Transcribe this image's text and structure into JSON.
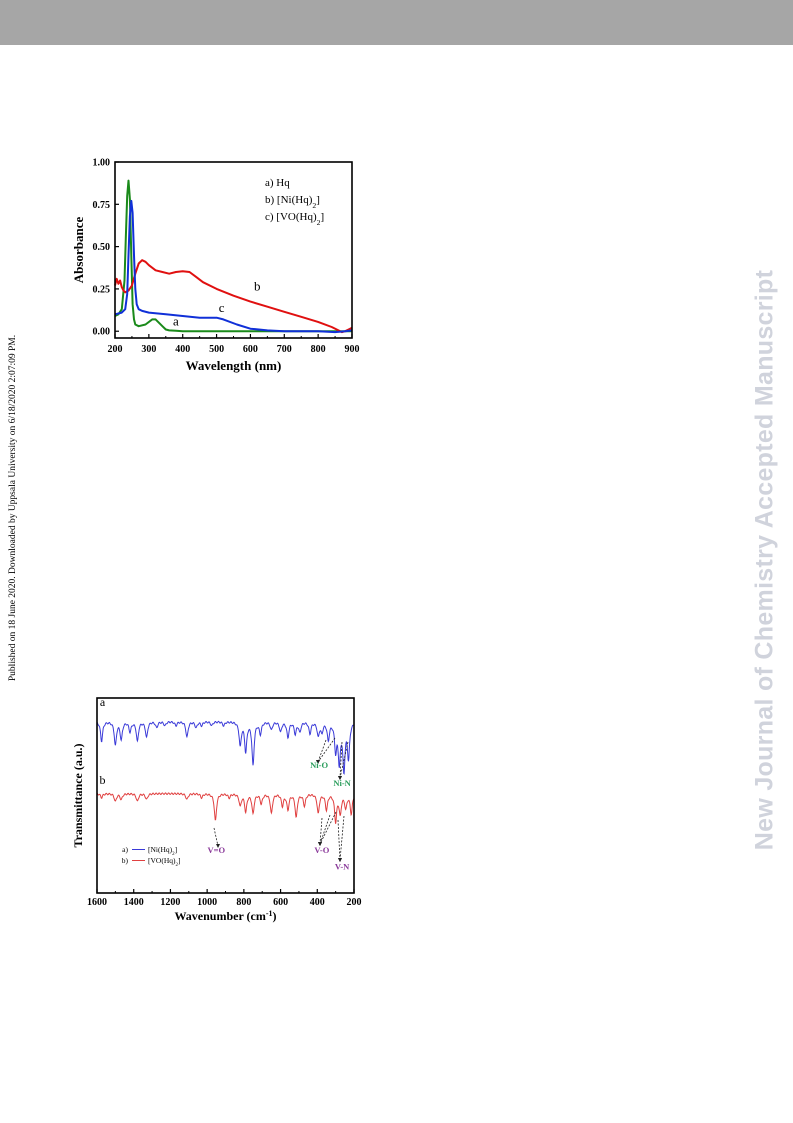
{
  "side_text": {
    "published": "Published on 18 June 2020. Downloaded by Uppsala University on 6/18/2020 2:07:09 PM.",
    "journal": "New Journal of Chemistry Accepted Manuscript"
  },
  "chart_data": [
    {
      "type": "line",
      "xlabel": "Wavelength (nm)",
      "ylabel": "Absorbance",
      "xlim": [
        200,
        900
      ],
      "ylim": [
        -0.04,
        1.0
      ],
      "xticks": [
        "200",
        "300",
        "400",
        "500",
        "600",
        "700",
        "800",
        "900"
      ],
      "yticks": [
        "0.00",
        "0.25",
        "0.50",
        "0.75",
        "1.00"
      ],
      "legend": [
        {
          "tag": "a)",
          "text": "Hq"
        },
        {
          "tag": "b)",
          "text": "[Ni(Hq)",
          "sub": "2",
          "tail": "]"
        },
        {
          "tag": "c)",
          "text": "[VO(Hq)",
          "sub": "2",
          "tail": "]"
        }
      ],
      "legend_position": "top-right",
      "curve_labels": [
        {
          "text": "a",
          "x": 380,
          "y": 0.035
        },
        {
          "text": "b",
          "x": 620,
          "y": 0.24
        },
        {
          "text": "c",
          "x": 515,
          "y": 0.115
        }
      ],
      "series": [
        {
          "label": "a",
          "color": "#1a8a1a",
          "x": [
            200,
            210,
            220,
            228,
            232,
            236,
            240,
            244,
            248,
            252,
            256,
            260,
            270,
            290,
            310,
            320,
            330,
            340,
            350,
            360,
            380,
            400,
            450,
            500,
            600,
            700,
            800,
            900
          ],
          "y": [
            0.09,
            0.1,
            0.13,
            0.3,
            0.55,
            0.8,
            0.89,
            0.78,
            0.45,
            0.16,
            0.07,
            0.04,
            0.03,
            0.04,
            0.07,
            0.07,
            0.05,
            0.03,
            0.01,
            0.005,
            0.003,
            0.0,
            0.0,
            0.0,
            0.0,
            0.0,
            0.0,
            0.0
          ]
        },
        {
          "label": "b",
          "color": "#e01010",
          "x": [
            200,
            205,
            210,
            215,
            220,
            225,
            230,
            240,
            250,
            260,
            270,
            280,
            290,
            300,
            320,
            340,
            360,
            380,
            400,
            420,
            440,
            460,
            500,
            550,
            600,
            650,
            700,
            750,
            800,
            840,
            860,
            870,
            880,
            890,
            900
          ],
          "y": [
            0.27,
            0.31,
            0.28,
            0.3,
            0.26,
            0.24,
            0.23,
            0.24,
            0.27,
            0.34,
            0.4,
            0.42,
            0.41,
            0.39,
            0.36,
            0.35,
            0.34,
            0.35,
            0.355,
            0.35,
            0.32,
            0.29,
            0.25,
            0.21,
            0.175,
            0.145,
            0.115,
            0.085,
            0.055,
            0.025,
            0.005,
            -0.005,
            0.0,
            0.01,
            0.02
          ]
        },
        {
          "label": "c",
          "color": "#1030d8",
          "x": [
            200,
            220,
            230,
            236,
            240,
            244,
            248,
            252,
            256,
            260,
            264,
            270,
            280,
            300,
            350,
            400,
            450,
            480,
            500,
            520,
            560,
            600,
            650,
            700,
            750,
            800,
            850,
            880,
            900
          ],
          "y": [
            0.1,
            0.11,
            0.13,
            0.22,
            0.45,
            0.68,
            0.77,
            0.7,
            0.45,
            0.25,
            0.16,
            0.13,
            0.12,
            0.11,
            0.1,
            0.09,
            0.08,
            0.08,
            0.08,
            0.07,
            0.04,
            0.015,
            0.005,
            0.0,
            0.0,
            0.0,
            -0.005,
            0.0,
            0.005
          ]
        }
      ]
    },
    {
      "type": "line",
      "xlabel": "Wavenumber (cm",
      "xlabel_sup": "-1",
      "xlabel_tail": ")",
      "ylabel": "Transmittance (a.u.)",
      "x_reversed": true,
      "xlim": [
        1600,
        200
      ],
      "ylim": [
        0,
        1
      ],
      "xticks": [
        "1600",
        "1400",
        "1200",
        "1000",
        "800",
        "600",
        "400",
        "200"
      ],
      "legend": [
        {
          "tag": "a)",
          "text": "[Ni(Hq)",
          "sub": "2",
          "tail": "]"
        },
        {
          "tag": "b)",
          "text": "[VO(Hq)",
          "sub": "2",
          "tail": "]"
        }
      ],
      "legend_position": "bottom-left",
      "curve_labels": [
        {
          "text": "a",
          "x": 1570,
          "y": 0.96
        },
        {
          "text": "b",
          "x": 1570,
          "y": 0.56
        }
      ],
      "annotations": [
        {
          "text": "Ni-O",
          "color": "#2a9d5c",
          "x": 390,
          "y": 0.64
        },
        {
          "text": "Ni-N",
          "color": "#2a9d5c",
          "x": 265,
          "y": 0.55
        },
        {
          "text": "V=O",
          "color": "#8a3a9a",
          "x": 950,
          "y": 0.205
        },
        {
          "text": "V-O",
          "color": "#8a3a9a",
          "x": 375,
          "y": 0.205
        },
        {
          "text": "V-N",
          "color": "#8a3a9a",
          "x": 265,
          "y": 0.12
        }
      ],
      "series": [
        {
          "label": "a",
          "color": "#3a3ad8",
          "baseline": 0.88,
          "peaks": [
            [
              1575,
              0.1
            ],
            [
              1500,
              0.12
            ],
            [
              1468,
              0.09
            ],
            [
              1420,
              0.05
            ],
            [
              1380,
              0.1
            ],
            [
              1330,
              0.08
            ],
            [
              1275,
              0.03
            ],
            [
              1230,
              0.02
            ],
            [
              1170,
              0.02
            ],
            [
              1110,
              0.08
            ],
            [
              1060,
              0.03
            ],
            [
              1030,
              0.02
            ],
            [
              975,
              0.02
            ],
            [
              910,
              0.02
            ],
            [
              820,
              0.12
            ],
            [
              790,
              0.15
            ],
            [
              750,
              0.22
            ],
            [
              710,
              0.06
            ],
            [
              650,
              0.04
            ],
            [
              600,
              0.05
            ],
            [
              560,
              0.08
            ],
            [
              520,
              0.06
            ],
            [
              495,
              0.05
            ],
            [
              440,
              0.06
            ],
            [
              395,
              0.07
            ],
            [
              375,
              0.05
            ],
            [
              340,
              0.09
            ],
            [
              300,
              0.14
            ],
            [
              280,
              0.2
            ],
            [
              255,
              0.24
            ],
            [
              230,
              0.18
            ]
          ]
        },
        {
          "label": "b",
          "color": "#e04040",
          "baseline": 0.51,
          "peaks": [
            [
              1575,
              0.02
            ],
            [
              1500,
              0.04
            ],
            [
              1468,
              0.03
            ],
            [
              1380,
              0.04
            ],
            [
              1330,
              0.03
            ],
            [
              1110,
              0.03
            ],
            [
              1030,
              0.02
            ],
            [
              955,
              0.14
            ],
            [
              880,
              0.02
            ],
            [
              820,
              0.06
            ],
            [
              790,
              0.09
            ],
            [
              750,
              0.1
            ],
            [
              705,
              0.05
            ],
            [
              650,
              0.1
            ],
            [
              590,
              0.06
            ],
            [
              560,
              0.08
            ],
            [
              515,
              0.12
            ],
            [
              470,
              0.06
            ],
            [
              395,
              0.1
            ],
            [
              350,
              0.08
            ],
            [
              300,
              0.14
            ],
            [
              275,
              0.1
            ],
            [
              245,
              0.07
            ],
            [
              215,
              0.1
            ]
          ]
        }
      ]
    }
  ]
}
